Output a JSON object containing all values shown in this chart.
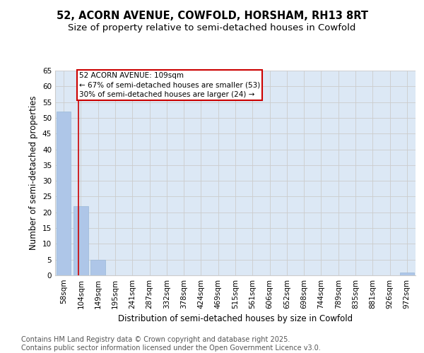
{
  "title": "52, ACORN AVENUE, COWFOLD, HORSHAM, RH13 8RT",
  "subtitle": "Size of property relative to semi-detached houses in Cowfold",
  "xlabel": "Distribution of semi-detached houses by size in Cowfold",
  "ylabel": "Number of semi-detached properties",
  "categories": [
    "58sqm",
    "104sqm",
    "149sqm",
    "195sqm",
    "241sqm",
    "287sqm",
    "332sqm",
    "378sqm",
    "424sqm",
    "469sqm",
    "515sqm",
    "561sqm",
    "606sqm",
    "652sqm",
    "698sqm",
    "744sqm",
    "789sqm",
    "835sqm",
    "881sqm",
    "926sqm",
    "972sqm"
  ],
  "values": [
    52,
    22,
    5,
    0,
    0,
    0,
    0,
    0,
    0,
    0,
    0,
    0,
    0,
    0,
    0,
    0,
    0,
    0,
    0,
    0,
    1
  ],
  "bar_color": "#aec6e8",
  "bar_edge_color": "#9ab8d8",
  "grid_color": "#cccccc",
  "plot_bg_color": "#dce8f5",
  "background_color": "#ffffff",
  "annotation_text": "52 ACORN AVENUE: 109sqm\n← 67% of semi-detached houses are smaller (53)\n30% of semi-detached houses are larger (24) →",
  "annotation_box_color": "#ffffff",
  "annotation_box_edge": "#cc0000",
  "vline_color": "#cc0000",
  "vline_x": 0.85,
  "ylim_max": 65,
  "yticks": [
    0,
    5,
    10,
    15,
    20,
    25,
    30,
    35,
    40,
    45,
    50,
    55,
    60,
    65
  ],
  "footer": "Contains HM Land Registry data © Crown copyright and database right 2025.\nContains public sector information licensed under the Open Government Licence v3.0.",
  "title_fontsize": 10.5,
  "subtitle_fontsize": 9.5,
  "axis_label_fontsize": 8.5,
  "tick_fontsize": 7.5,
  "footer_fontsize": 7,
  "ann_fontsize": 7.5
}
